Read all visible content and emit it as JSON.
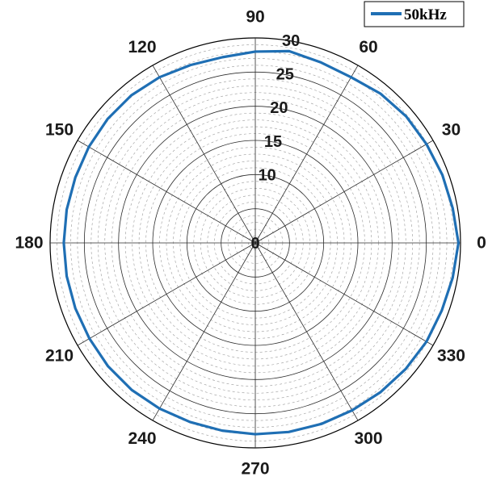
{
  "chart_data": {
    "type": "polar-line",
    "angular_unit": "degrees",
    "angular_ticks": [
      0,
      30,
      60,
      90,
      120,
      150,
      180,
      210,
      240,
      270,
      300,
      330
    ],
    "radial_tick_labels": [
      0,
      10,
      15,
      20,
      25,
      30
    ],
    "rlim": [
      0,
      30
    ],
    "grid": true,
    "legend_position": "top-right",
    "series": [
      {
        "name": "50kHz",
        "color": "#1f6fb4",
        "theta": [
          0,
          10,
          20,
          30,
          40,
          50,
          60,
          70,
          80,
          90,
          100,
          110,
          120,
          130,
          140,
          150,
          160,
          170,
          180,
          190,
          200,
          210,
          220,
          230,
          240,
          250,
          260,
          270,
          280,
          290,
          300,
          310,
          320,
          330,
          340,
          350,
          360
        ],
        "r": [
          29.7,
          29.3,
          29.1,
          28.9,
          28.8,
          28.5,
          28.0,
          28.1,
          28.5,
          28.0,
          27.6,
          27.7,
          28.0,
          28.2,
          28.2,
          28.1,
          28.0,
          28.0,
          28.0,
          28.0,
          28.0,
          28.0,
          28.1,
          28.1,
          28.0,
          27.9,
          27.9,
          28.0,
          28.1,
          28.2,
          28.3,
          28.5,
          28.7,
          28.9,
          29.0,
          29.3,
          29.7
        ]
      }
    ]
  }
}
